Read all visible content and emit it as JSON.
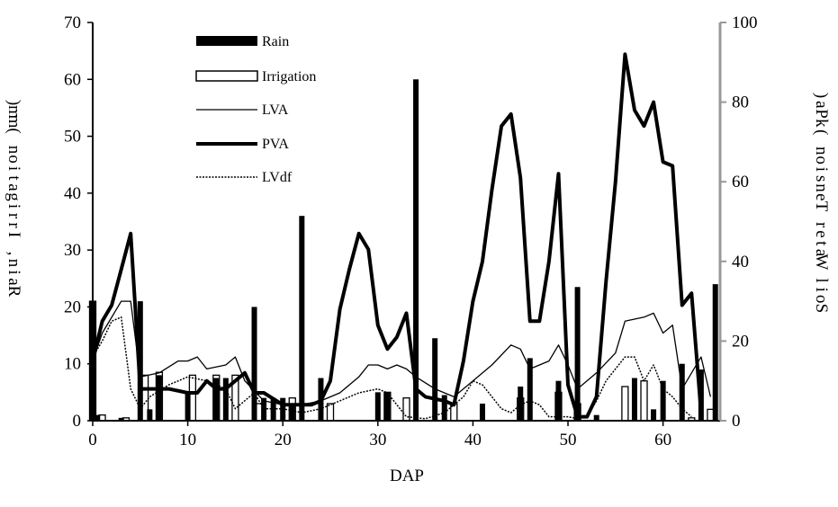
{
  "chart_data": {
    "type": "bar+line",
    "xlabel": "DAP",
    "ylabel_left": "Rain, Irrigation (mm)",
    "ylabel_right": "Soil Water Tension (kPa)",
    "xlim": [
      0,
      66
    ],
    "ylim_left": [
      0,
      70
    ],
    "ylim_right": [
      0,
      100
    ],
    "x_ticks": [
      0,
      10,
      20,
      30,
      40,
      50,
      60
    ],
    "y_left_ticks": [
      0,
      10,
      20,
      30,
      40,
      50,
      60,
      70
    ],
    "y_right_ticks": [
      0,
      20,
      40,
      60,
      80,
      100
    ],
    "grid": false,
    "legend_position": "top-left-center",
    "colors": {
      "rain": "#000000",
      "irrigation": "#ffffff",
      "LVA": "#000000",
      "PVA": "#000000",
      "LVdf": "#000000",
      "right_axis": "#999999"
    },
    "series": [
      {
        "name": "Rain",
        "kind": "bar",
        "axis": "left",
        "points": [
          [
            0,
            21
          ],
          [
            0.5,
            1
          ],
          [
            3,
            0.5
          ],
          [
            5,
            21
          ],
          [
            6,
            2
          ],
          [
            7,
            8
          ],
          [
            10,
            5
          ],
          [
            13,
            7.5
          ],
          [
            14,
            7.5
          ],
          [
            17,
            20
          ],
          [
            18,
            4
          ],
          [
            19,
            4
          ],
          [
            20,
            4
          ],
          [
            21,
            3
          ],
          [
            22,
            36
          ],
          [
            24,
            7.5
          ],
          [
            30,
            5
          ],
          [
            31,
            5
          ],
          [
            34,
            60
          ],
          [
            36,
            14.5
          ],
          [
            37,
            4.5
          ],
          [
            41,
            3
          ],
          [
            45,
            6
          ],
          [
            46,
            11
          ],
          [
            49,
            7
          ],
          [
            51,
            23.5
          ],
          [
            53,
            1
          ],
          [
            57,
            7.5
          ],
          [
            59,
            2
          ],
          [
            60,
            7
          ],
          [
            62,
            10
          ],
          [
            64,
            9
          ],
          [
            65.5,
            24
          ]
        ]
      },
      {
        "name": "Irrigation",
        "kind": "bar",
        "axis": "left",
        "points": [
          [
            0,
            21
          ],
          [
            1,
            1
          ],
          [
            3.5,
            0.5
          ],
          [
            5.5,
            8
          ],
          [
            7,
            8.5
          ],
          [
            10.5,
            8
          ],
          [
            13,
            8
          ],
          [
            15,
            8
          ],
          [
            17.5,
            3
          ],
          [
            21,
            4
          ],
          [
            25,
            3
          ],
          [
            31,
            5
          ],
          [
            33,
            4
          ],
          [
            38,
            3
          ],
          [
            45,
            4
          ],
          [
            49,
            5
          ],
          [
            51,
            3
          ],
          [
            56,
            6
          ],
          [
            58,
            7
          ],
          [
            63,
            0.5
          ],
          [
            65,
            2
          ]
        ]
      },
      {
        "name": "LVA",
        "kind": "line",
        "axis": "right",
        "stroke_width": 1.3,
        "points": [
          [
            0,
            15
          ],
          [
            1,
            22
          ],
          [
            3,
            30
          ],
          [
            4,
            30
          ],
          [
            5,
            11
          ],
          [
            7,
            12
          ],
          [
            9,
            15
          ],
          [
            10,
            15
          ],
          [
            11,
            16
          ],
          [
            12,
            13
          ],
          [
            14,
            14
          ],
          [
            15,
            16
          ],
          [
            16,
            10
          ],
          [
            18,
            5
          ],
          [
            20,
            4
          ],
          [
            22,
            4
          ],
          [
            24,
            5
          ],
          [
            26,
            7
          ],
          [
            28,
            11
          ],
          [
            29,
            14
          ],
          [
            30,
            14
          ],
          [
            31,
            13
          ],
          [
            32,
            14
          ],
          [
            33,
            13
          ],
          [
            34,
            11
          ],
          [
            36,
            8
          ],
          [
            38,
            6
          ],
          [
            40,
            10
          ],
          [
            42,
            14
          ],
          [
            44,
            19
          ],
          [
            45,
            18
          ],
          [
            46,
            13
          ],
          [
            48,
            15
          ],
          [
            49,
            19
          ],
          [
            50,
            14
          ],
          [
            51,
            8
          ],
          [
            53,
            12
          ],
          [
            55,
            17
          ],
          [
            56,
            25
          ],
          [
            58,
            26
          ],
          [
            59,
            27
          ],
          [
            60,
            22
          ],
          [
            61,
            24
          ],
          [
            62,
            8
          ],
          [
            64,
            16
          ],
          [
            65,
            6
          ]
        ]
      },
      {
        "name": "PVA",
        "kind": "line",
        "axis": "right",
        "stroke_width": 4,
        "points": [
          [
            0,
            15
          ],
          [
            1,
            25
          ],
          [
            2,
            29
          ],
          [
            3,
            38
          ],
          [
            4,
            47
          ],
          [
            5,
            8
          ],
          [
            6,
            8
          ],
          [
            8,
            8
          ],
          [
            10,
            7
          ],
          [
            11,
            7
          ],
          [
            12,
            10
          ],
          [
            13,
            8
          ],
          [
            14,
            8
          ],
          [
            15,
            10
          ],
          [
            16,
            12
          ],
          [
            17,
            7
          ],
          [
            18,
            7
          ],
          [
            20,
            4
          ],
          [
            22,
            4
          ],
          [
            23,
            4
          ],
          [
            24,
            5
          ],
          [
            25,
            10
          ],
          [
            26,
            28
          ],
          [
            27,
            38
          ],
          [
            28,
            47
          ],
          [
            29,
            43
          ],
          [
            30,
            24
          ],
          [
            31,
            18
          ],
          [
            32,
            21
          ],
          [
            33,
            27
          ],
          [
            34,
            8
          ],
          [
            35,
            6
          ],
          [
            37,
            5
          ],
          [
            38,
            4
          ],
          [
            39,
            15
          ],
          [
            40,
            30
          ],
          [
            41,
            40
          ],
          [
            42,
            58
          ],
          [
            43,
            74
          ],
          [
            44,
            77
          ],
          [
            45,
            61
          ],
          [
            46,
            25
          ],
          [
            47,
            25
          ],
          [
            48,
            40
          ],
          [
            49,
            62
          ],
          [
            50,
            9
          ],
          [
            51,
            1
          ],
          [
            52,
            1
          ],
          [
            53,
            6
          ],
          [
            54,
            35
          ],
          [
            55,
            60
          ],
          [
            56,
            92
          ],
          [
            57,
            78
          ],
          [
            58,
            74
          ],
          [
            59,
            80
          ],
          [
            60,
            65
          ],
          [
            61,
            64
          ],
          [
            62,
            29
          ],
          [
            63,
            32
          ],
          [
            64,
            2
          ]
        ]
      },
      {
        "name": "LVdf",
        "kind": "line",
        "axis": "right",
        "stroke_width": 1.5,
        "dashed": true,
        "points": [
          [
            0,
            16
          ],
          [
            1,
            20
          ],
          [
            2,
            25
          ],
          [
            3,
            26
          ],
          [
            4,
            8
          ],
          [
            5,
            3
          ],
          [
            6,
            6
          ],
          [
            8,
            9
          ],
          [
            10,
            11
          ],
          [
            12,
            10
          ],
          [
            14,
            8
          ],
          [
            15,
            3
          ],
          [
            17,
            7
          ],
          [
            18,
            3
          ],
          [
            20,
            3
          ],
          [
            22,
            2
          ],
          [
            24,
            3
          ],
          [
            26,
            5
          ],
          [
            28,
            7
          ],
          [
            30,
            8
          ],
          [
            31,
            7
          ],
          [
            32,
            4
          ],
          [
            33,
            1
          ],
          [
            35,
            0.5
          ],
          [
            37,
            2
          ],
          [
            38,
            4
          ],
          [
            39,
            6
          ],
          [
            40,
            10
          ],
          [
            41,
            9
          ],
          [
            42,
            6
          ],
          [
            43,
            3
          ],
          [
            44,
            2
          ],
          [
            45,
            4
          ],
          [
            46,
            5
          ],
          [
            47,
            4
          ],
          [
            48,
            1
          ],
          [
            50,
            1
          ],
          [
            51,
            0.5
          ],
          [
            52,
            1
          ],
          [
            53,
            5
          ],
          [
            54,
            10
          ],
          [
            55,
            13
          ],
          [
            56,
            16
          ],
          [
            57,
            16
          ],
          [
            58,
            10
          ],
          [
            59,
            14
          ],
          [
            60,
            8
          ],
          [
            61,
            6
          ],
          [
            62,
            3
          ],
          [
            63,
            1
          ]
        ]
      }
    ]
  }
}
